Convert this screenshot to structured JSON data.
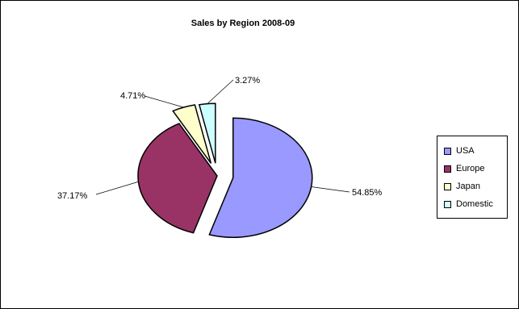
{
  "chart_data": {
    "type": "pie",
    "title": "Sales by Region 2008-09",
    "exploded": true,
    "legend_position": "right",
    "slices": [
      {
        "name": "USA",
        "value": 54.85,
        "label": "54.85%",
        "color": "#9999ff"
      },
      {
        "name": "Europe",
        "value": 37.17,
        "label": "37.17%",
        "color": "#993366"
      },
      {
        "name": "Japan",
        "value": 4.71,
        "label": "4.71%",
        "color": "#ffffcc"
      },
      {
        "name": "Domestic",
        "value": 3.27,
        "label": "3.27%",
        "color": "#ccffff"
      }
    ]
  }
}
